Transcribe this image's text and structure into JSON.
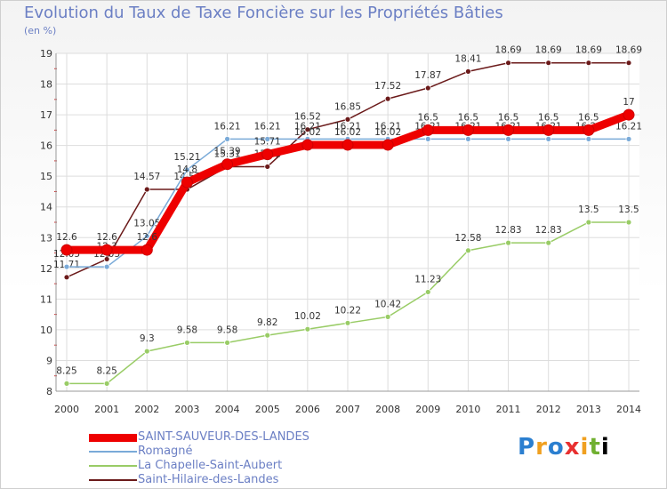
{
  "chart_data": {
    "type": "line",
    "title": "Evolution du Taux de Taxe Foncière sur les Propriétés Bâties",
    "subtitle": "(en %)",
    "xlabel": "",
    "ylabel": "",
    "ylim": [
      8,
      19
    ],
    "yticks": [
      "8",
      "9",
      "10",
      "11",
      "12",
      "13",
      "14",
      "15",
      "16",
      "17",
      "18",
      "19"
    ],
    "categories": [
      "2000",
      "2001",
      "2002",
      "2003",
      "2004",
      "2005",
      "2006",
      "2007",
      "2008",
      "2009",
      "2010",
      "2011",
      "2012",
      "2013",
      "2014"
    ],
    "grid": true,
    "series": [
      {
        "name": "Saint-Hilaire-des-Landes",
        "color": "#6b1a1a",
        "values": [
          11.71,
          12.3,
          14.57,
          14.57,
          15.31,
          15.31,
          16.52,
          16.85,
          17.52,
          17.87,
          18.41,
          18.69,
          18.69,
          18.69,
          18.69
        ],
        "labels": [
          "11.71",
          "12.3",
          "14.57",
          "14.57",
          "15.31",
          "15.31",
          "16.52",
          "16.85",
          "17.52",
          "17.87",
          "18.41",
          "18.69",
          "18.69",
          "18.69",
          "18.69"
        ]
      },
      {
        "name": "La Chapelle-Saint-Aubert",
        "color": "#99cc66",
        "values": [
          8.25,
          8.25,
          9.3,
          9.58,
          9.58,
          9.82,
          10.02,
          10.22,
          10.42,
          11.23,
          12.58,
          12.83,
          12.83,
          13.5,
          13.5
        ],
        "labels": [
          "8.25",
          "8.25",
          "9.3",
          "9.58",
          "9.58",
          "9.82",
          "10.02",
          "10.22",
          "10.42",
          "11.23",
          "12.58",
          "12.83",
          "12.83",
          "13.5",
          "13.5"
        ]
      },
      {
        "name": "Romagné",
        "color": "#7aaad8",
        "values": [
          12.05,
          12.05,
          13.05,
          15.21,
          16.21,
          16.21,
          16.21,
          16.21,
          16.21,
          16.21,
          16.21,
          16.21,
          16.21,
          16.21,
          16.21
        ],
        "labels": [
          "12.05",
          "12.05",
          "13.05",
          "15.21",
          "16.21",
          "16.21",
          "16.21",
          "16.21",
          "16.21",
          "16.21",
          "16.21",
          "16.21",
          "16.21",
          "16.21",
          "16.21"
        ]
      },
      {
        "name": "SAINT-SAUVEUR-DES-LANDES",
        "color": "#ee0000",
        "values": [
          12.6,
          12.6,
          12.6,
          14.8,
          15.39,
          15.71,
          16.02,
          16.02,
          16.02,
          16.5,
          16.5,
          16.5,
          16.5,
          16.5,
          17
        ],
        "labels": [
          "12.6",
          "12.6",
          "12.6",
          "14.8",
          "15.39",
          "15.71",
          "16.02",
          "16.02",
          "16.02",
          "16.5",
          "16.5",
          "16.5",
          "16.5",
          "16.5",
          "17"
        ]
      }
    ],
    "legend": {
      "placement": "bottom-left",
      "order": [
        "SAINT-SAUVEUR-DES-LANDES",
        "Romagné",
        "La Chapelle-Saint-Aubert",
        "Saint-Hilaire-des-Landes"
      ]
    }
  },
  "branding": {
    "logo_letters": [
      "P",
      "r",
      "o",
      "x",
      "i",
      "t",
      "i"
    ]
  }
}
